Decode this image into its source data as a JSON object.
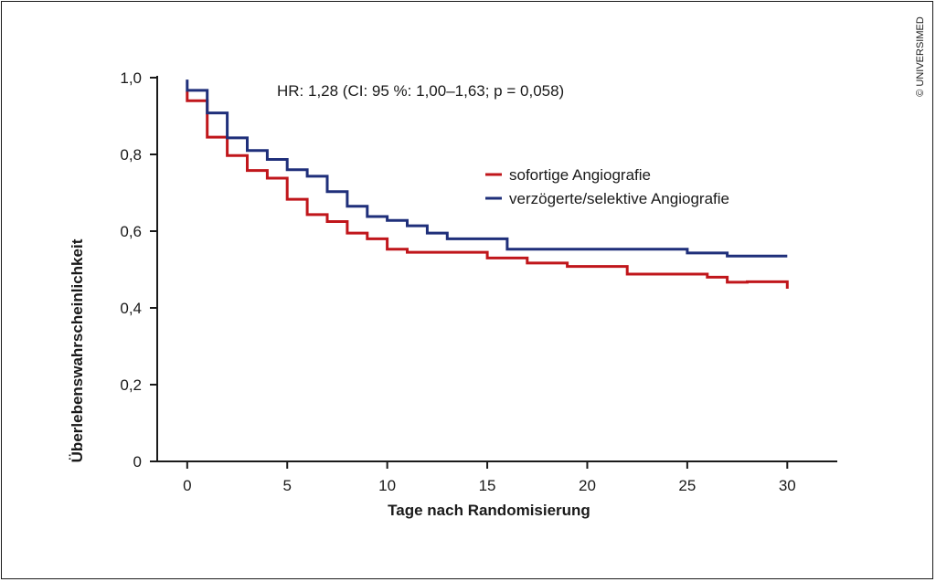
{
  "copyright": "© UNIVERSIMED",
  "chart_data": {
    "type": "line",
    "step": true,
    "xlabel": "Tage nach Randomisierung",
    "ylabel": "Überlebenswahrscheinlichkeit",
    "xlim": [
      -1.5,
      32.5
    ],
    "ylim": [
      0,
      1.0
    ],
    "x_ticks": [
      0,
      5,
      10,
      15,
      20,
      25,
      30
    ],
    "x_tick_labels": [
      "0",
      "5",
      "10",
      "15",
      "20",
      "25",
      "30"
    ],
    "y_ticks": [
      0,
      0.2,
      0.4,
      0.6,
      0.8,
      1.0
    ],
    "y_tick_labels": [
      "0",
      "0,2",
      "0,4",
      "0,6",
      "0,8",
      "1,0"
    ],
    "grid": false,
    "legend_position": "right",
    "annotation": "HR: 1,28 (CI: 95 %: 1,00–1,63; p = 0,058)",
    "series": [
      {
        "name": "sofortige Angiografie",
        "color": "#c0161b",
        "points": [
          [
            0,
            0.965
          ],
          [
            0,
            0.94
          ],
          [
            1,
            0.94
          ],
          [
            1,
            0.845
          ],
          [
            2,
            0.845
          ],
          [
            2,
            0.797
          ],
          [
            3,
            0.797
          ],
          [
            3,
            0.758
          ],
          [
            4,
            0.758
          ],
          [
            4,
            0.738
          ],
          [
            5,
            0.738
          ],
          [
            5,
            0.683
          ],
          [
            6,
            0.683
          ],
          [
            6,
            0.643
          ],
          [
            7,
            0.643
          ],
          [
            7,
            0.625
          ],
          [
            8,
            0.625
          ],
          [
            8,
            0.595
          ],
          [
            9,
            0.595
          ],
          [
            9,
            0.58
          ],
          [
            10,
            0.58
          ],
          [
            10,
            0.553
          ],
          [
            11,
            0.553
          ],
          [
            11,
            0.545
          ],
          [
            15,
            0.545
          ],
          [
            15,
            0.53
          ],
          [
            17,
            0.53
          ],
          [
            17,
            0.517
          ],
          [
            19,
            0.517
          ],
          [
            19,
            0.508
          ],
          [
            22,
            0.508
          ],
          [
            22,
            0.488
          ],
          [
            26,
            0.488
          ],
          [
            26,
            0.48
          ],
          [
            27,
            0.48
          ],
          [
            27,
            0.467
          ],
          [
            28,
            0.467
          ],
          [
            28,
            0.468
          ],
          [
            30,
            0.468
          ],
          [
            30,
            0.45
          ]
        ]
      },
      {
        "name": "verzögerte/selektive Angiografie",
        "color": "#1f2f7a",
        "points": [
          [
            0,
            0.995
          ],
          [
            0,
            0.967
          ],
          [
            1,
            0.967
          ],
          [
            1,
            0.908
          ],
          [
            2,
            0.908
          ],
          [
            2,
            0.843
          ],
          [
            3,
            0.843
          ],
          [
            3,
            0.81
          ],
          [
            4,
            0.81
          ],
          [
            4,
            0.787
          ],
          [
            5,
            0.787
          ],
          [
            5,
            0.76
          ],
          [
            6,
            0.76
          ],
          [
            6,
            0.743
          ],
          [
            7,
            0.743
          ],
          [
            7,
            0.703
          ],
          [
            8,
            0.703
          ],
          [
            8,
            0.665
          ],
          [
            9,
            0.665
          ],
          [
            9,
            0.638
          ],
          [
            10,
            0.638
          ],
          [
            10,
            0.628
          ],
          [
            11,
            0.628
          ],
          [
            11,
            0.614
          ],
          [
            12,
            0.614
          ],
          [
            12,
            0.595
          ],
          [
            13,
            0.595
          ],
          [
            13,
            0.58
          ],
          [
            16,
            0.58
          ],
          [
            16,
            0.553
          ],
          [
            25,
            0.553
          ],
          [
            25,
            0.543
          ],
          [
            27,
            0.543
          ],
          [
            27,
            0.535
          ],
          [
            30,
            0.535
          ]
        ]
      }
    ]
  }
}
